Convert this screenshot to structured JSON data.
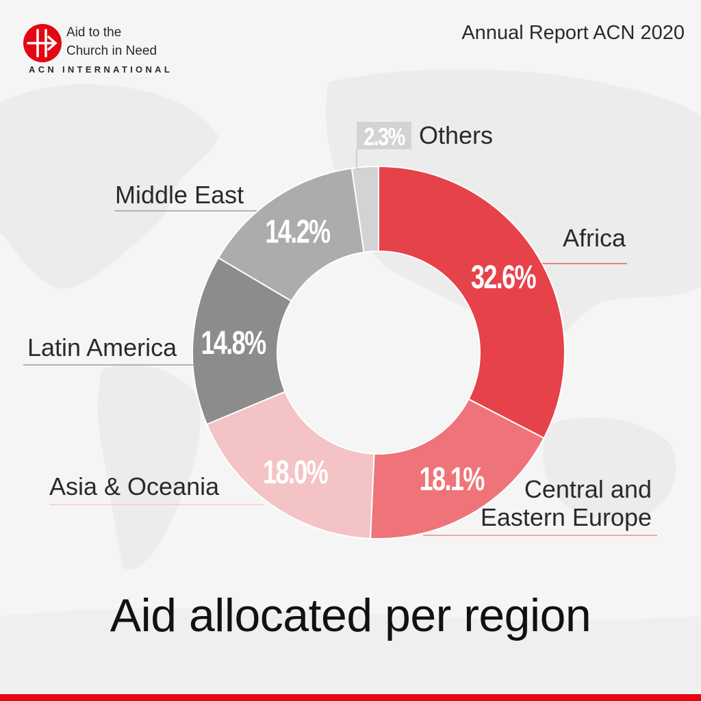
{
  "header": {
    "logo_line1": "Aid to the",
    "logo_line2": "Church in Need",
    "logo_sub": "ACN INTERNATIONAL",
    "report_title": "Annual Report ACN 2020"
  },
  "chart_data": {
    "type": "pie",
    "style": "donut",
    "title": "Aid allocated per region",
    "series": [
      {
        "name": "Africa",
        "value": 32.6,
        "label": "32.6%",
        "color": "#e5424a"
      },
      {
        "name": "Central and Eastern Europe",
        "name_lines": [
          "Central and",
          "Eastern Europe"
        ],
        "value": 18.1,
        "label": "18.1%",
        "color": "#ef7479"
      },
      {
        "name": "Asia & Oceania",
        "value": 18.0,
        "label": "18.0%",
        "color": "#f4c3c5"
      },
      {
        "name": "Latin America",
        "value": 14.8,
        "label": "14.8%",
        "color": "#8c8c8c"
      },
      {
        "name": "Middle East",
        "value": 14.2,
        "label": "14.2%",
        "color": "#acacac"
      },
      {
        "name": "Others",
        "value": 2.3,
        "label": "2.3%",
        "color": "#d3d3d3"
      }
    ]
  },
  "colors": {
    "accent": "#e30613",
    "text": "#2a2a2a",
    "background": "#f5f5f5"
  }
}
